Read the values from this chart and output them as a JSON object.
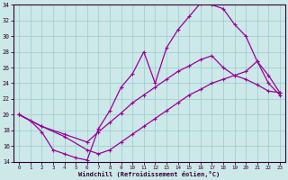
{
  "xlabel": "Windchill (Refroidissement éolien,°C)",
  "bg_color": "#cce8e8",
  "line_color": "#990099",
  "grid_color": "#99cccc",
  "xlim_min": -0.5,
  "xlim_max": 23.5,
  "ylim_min": 14,
  "ylim_max": 34,
  "xticks": [
    0,
    1,
    2,
    3,
    4,
    5,
    6,
    7,
    8,
    9,
    10,
    11,
    12,
    13,
    14,
    15,
    16,
    17,
    18,
    19,
    20,
    21,
    22,
    23
  ],
  "yticks": [
    14,
    16,
    18,
    20,
    22,
    24,
    26,
    28,
    30,
    32,
    34
  ],
  "curve1_x": [
    0,
    1,
    2,
    3,
    4,
    5,
    6,
    7,
    8,
    9,
    10,
    11,
    12,
    13,
    14,
    15,
    16,
    17,
    18,
    19,
    20,
    21,
    22,
    23
  ],
  "curve1_y": [
    20.0,
    19.2,
    17.8,
    15.5,
    15.0,
    14.5,
    14.2,
    18.2,
    20.5,
    23.5,
    25.2,
    28.0,
    24.0,
    28.5,
    30.8,
    32.5,
    34.2,
    34.0,
    33.5,
    31.5,
    30.0,
    26.8,
    24.0,
    22.5
  ],
  "curve2_x": [
    0,
    2,
    4,
    6,
    7,
    8,
    9,
    10,
    11,
    12,
    13,
    14,
    15,
    16,
    17,
    18,
    19,
    20,
    21,
    22,
    23
  ],
  "curve2_y": [
    20.0,
    18.5,
    17.5,
    16.5,
    17.8,
    19.0,
    20.2,
    21.5,
    22.5,
    23.5,
    24.5,
    25.5,
    26.2,
    27.0,
    27.5,
    26.0,
    25.0,
    24.5,
    23.8,
    23.0,
    22.8
  ],
  "curve3_x": [
    0,
    2,
    4,
    6,
    7,
    8,
    9,
    10,
    11,
    12,
    13,
    14,
    15,
    16,
    17,
    18,
    19,
    20,
    21,
    22,
    23
  ],
  "curve3_y": [
    20.0,
    18.5,
    17.2,
    15.5,
    15.0,
    15.5,
    16.5,
    17.5,
    18.5,
    19.5,
    20.5,
    21.5,
    22.5,
    23.2,
    24.0,
    24.5,
    25.0,
    25.5,
    26.8,
    25.0,
    22.8
  ]
}
